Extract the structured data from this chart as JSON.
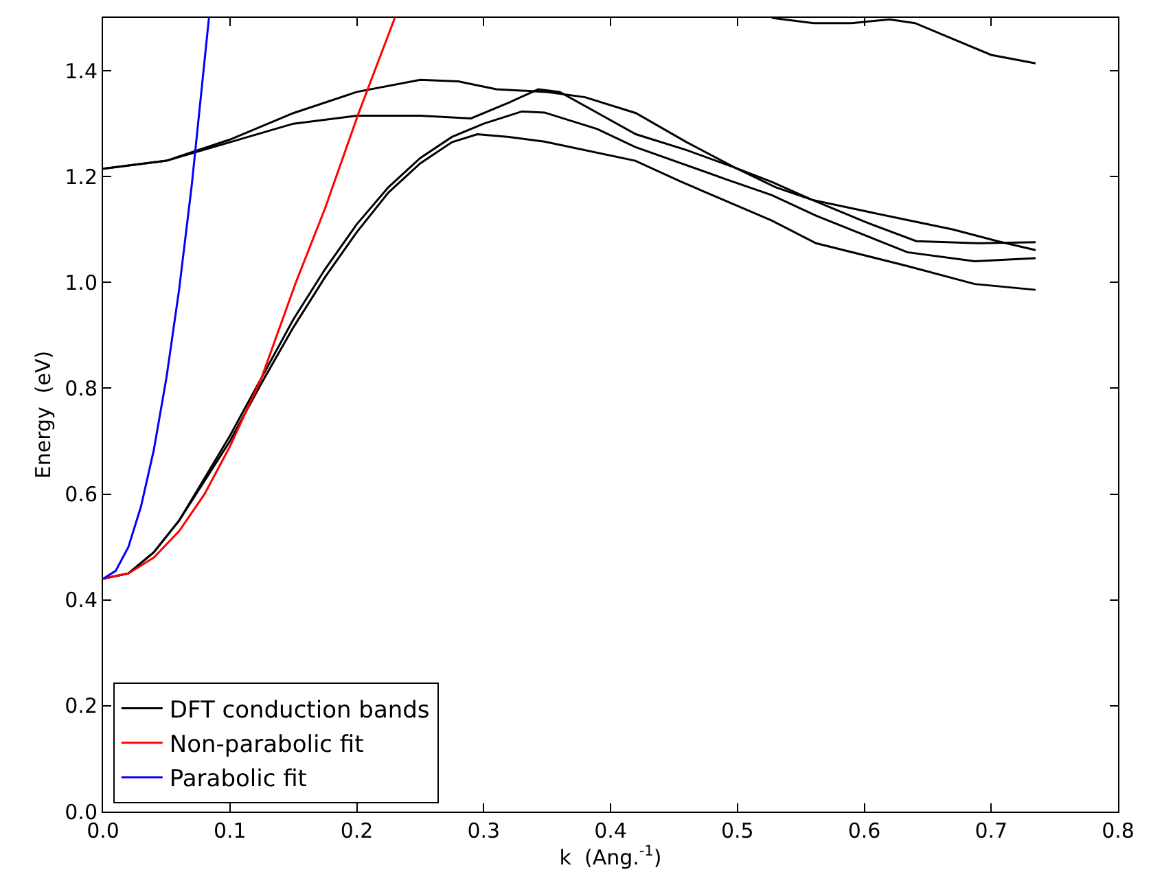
{
  "chart_data": {
    "type": "line",
    "xlabel": "k  (Ang.$^{-1}$)",
    "ylabel": "Energy  (eV)",
    "xlim": [
      0,
      0.8
    ],
    "ylim": [
      0,
      1.5
    ],
    "xticks": [
      {
        "value": 0,
        "label": "0.0"
      },
      0.1,
      0.2,
      0.3,
      0.4,
      0.5,
      0.6,
      0.7,
      0.8
    ],
    "yticks": [
      {
        "value": 0,
        "label": "0.0"
      },
      0.2,
      0.4,
      0.6,
      0.8,
      {
        "value": 1,
        "label": "1.0"
      },
      1.2,
      1.4
    ],
    "legend": "bottom left",
    "marker": "none",
    "line_style": "solid",
    "series": [
      {
        "name": "DFT conduction bands",
        "color": "#000000",
        "x": [
          0,
          0.02,
          0.04,
          0.06,
          0.08,
          0.1,
          0.125,
          0.15,
          0.175,
          0.2,
          0.225,
          0.25,
          0.275,
          0.295,
          0.32,
          0.348,
          0.4195,
          0.455,
          0.527,
          0.562,
          0.634,
          0.687,
          0.735
        ],
        "values": [
          0.44,
          0.45,
          0.49,
          0.55,
          0.625,
          0.7,
          0.81,
          0.915,
          1.01,
          1.095,
          1.17,
          1.225,
          1.265,
          1.28,
          1.275,
          1.266,
          1.23,
          1.191,
          1.117,
          1.074,
          1.031,
          0.997,
          0.986
        ]
      },
      {
        "color": "#000000",
        "x": [
          0,
          0.02,
          0.04,
          0.06,
          0.08,
          0.1,
          0.125,
          0.15,
          0.175,
          0.2,
          0.225,
          0.25,
          0.275,
          0.3,
          0.33,
          0.348,
          0.3895,
          0.4195,
          0.491,
          0.527,
          0.562,
          0.634,
          0.687,
          0.735
        ],
        "values": [
          0.44,
          0.45,
          0.49,
          0.55,
          0.63,
          0.71,
          0.82,
          0.93,
          1.025,
          1.11,
          1.18,
          1.235,
          1.275,
          1.3,
          1.323,
          1.321,
          1.29,
          1.256,
          1.195,
          1.165,
          1.126,
          1.057,
          1.04,
          1.046
        ]
      },
      {
        "color": "#000000",
        "x": [
          0,
          0.05,
          0.1,
          0.15,
          0.2,
          0.25,
          0.29,
          0.32,
          0.343,
          0.36,
          0.39,
          0.42,
          0.46,
          0.498,
          0.527,
          0.559,
          0.6,
          0.64,
          0.67,
          0.705,
          0.735
        ],
        "values": [
          1.215,
          1.23,
          1.265,
          1.3,
          1.315,
          1.315,
          1.31,
          1.34,
          1.365,
          1.36,
          1.32,
          1.28,
          1.25,
          1.217,
          1.19,
          1.156,
          1.135,
          1.115,
          1.1,
          1.078,
          1.061
        ]
      },
      {
        "color": "#000000",
        "x": [
          0,
          0.05,
          0.1,
          0.15,
          0.2,
          0.25,
          0.28,
          0.31,
          0.35,
          0.38,
          0.42,
          0.46,
          0.498,
          0.53,
          0.559,
          0.6,
          0.641,
          0.69,
          0.735
        ],
        "values": [
          1.215,
          1.23,
          1.27,
          1.32,
          1.36,
          1.383,
          1.38,
          1.365,
          1.36,
          1.35,
          1.32,
          1.265,
          1.217,
          1.18,
          1.156,
          1.115,
          1.078,
          1.074,
          1.076
        ]
      },
      {
        "color": "#000000",
        "x": [
          0.527,
          0.56,
          0.59,
          0.62,
          0.64,
          0.67,
          0.7,
          0.735
        ],
        "values": [
          1.5,
          1.49,
          1.49,
          1.497,
          1.49,
          1.46,
          1.43,
          1.414
        ]
      },
      {
        "name": "Non-parabolic fit",
        "color": "#ff0000",
        "x": [
          0,
          0.02,
          0.04,
          0.06,
          0.08,
          0.1,
          0.125,
          0.152,
          0.175,
          0.201,
          0.23
        ],
        "values": [
          0.44,
          0.45,
          0.48,
          0.53,
          0.6,
          0.69,
          0.82,
          1.0,
          1.14,
          1.317,
          1.5
        ]
      },
      {
        "name": "Parabolic fit",
        "color": "#0000ff",
        "x": [
          0,
          0.01,
          0.02,
          0.03,
          0.04,
          0.05,
          0.06,
          0.07,
          0.0835
        ],
        "values": [
          0.44,
          0.455,
          0.5,
          0.577,
          0.683,
          0.82,
          0.987,
          1.185,
          1.5
        ]
      }
    ]
  }
}
